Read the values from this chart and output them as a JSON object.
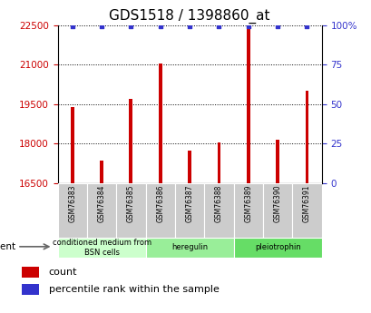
{
  "title": "GDS1518 / 1398860_at",
  "categories": [
    "GSM76383",
    "GSM76384",
    "GSM76385",
    "GSM76386",
    "GSM76387",
    "GSM76388",
    "GSM76389",
    "GSM76390",
    "GSM76391"
  ],
  "counts": [
    19400,
    17350,
    19700,
    21050,
    17750,
    18050,
    22500,
    18150,
    20000
  ],
  "percentiles": [
    99,
    99,
    99,
    99,
    99,
    99,
    99,
    99,
    99
  ],
  "ylim": [
    16500,
    22500
  ],
  "yticks": [
    16500,
    18000,
    19500,
    21000,
    22500
  ],
  "right_yticks_vals": [
    0,
    25,
    50,
    75,
    100
  ],
  "right_yticks_labels": [
    "0",
    "25",
    "50",
    "75",
    "100%"
  ],
  "right_ylim": [
    0,
    100
  ],
  "bar_color": "#cc0000",
  "dot_color": "#3333cc",
  "groups": [
    {
      "label": "conditioned medium from\nBSN cells",
      "start": 0,
      "end": 3,
      "color": "#ccffcc"
    },
    {
      "label": "heregulin",
      "start": 3,
      "end": 6,
      "color": "#99ee99"
    },
    {
      "label": "pleiotrophin",
      "start": 6,
      "end": 9,
      "color": "#66dd66"
    }
  ],
  "agent_label": "agent",
  "legend_count_label": "count",
  "legend_pct_label": "percentile rank within the sample",
  "title_fontsize": 11,
  "axis_color_left": "#cc0000",
  "axis_color_right": "#3333cc"
}
